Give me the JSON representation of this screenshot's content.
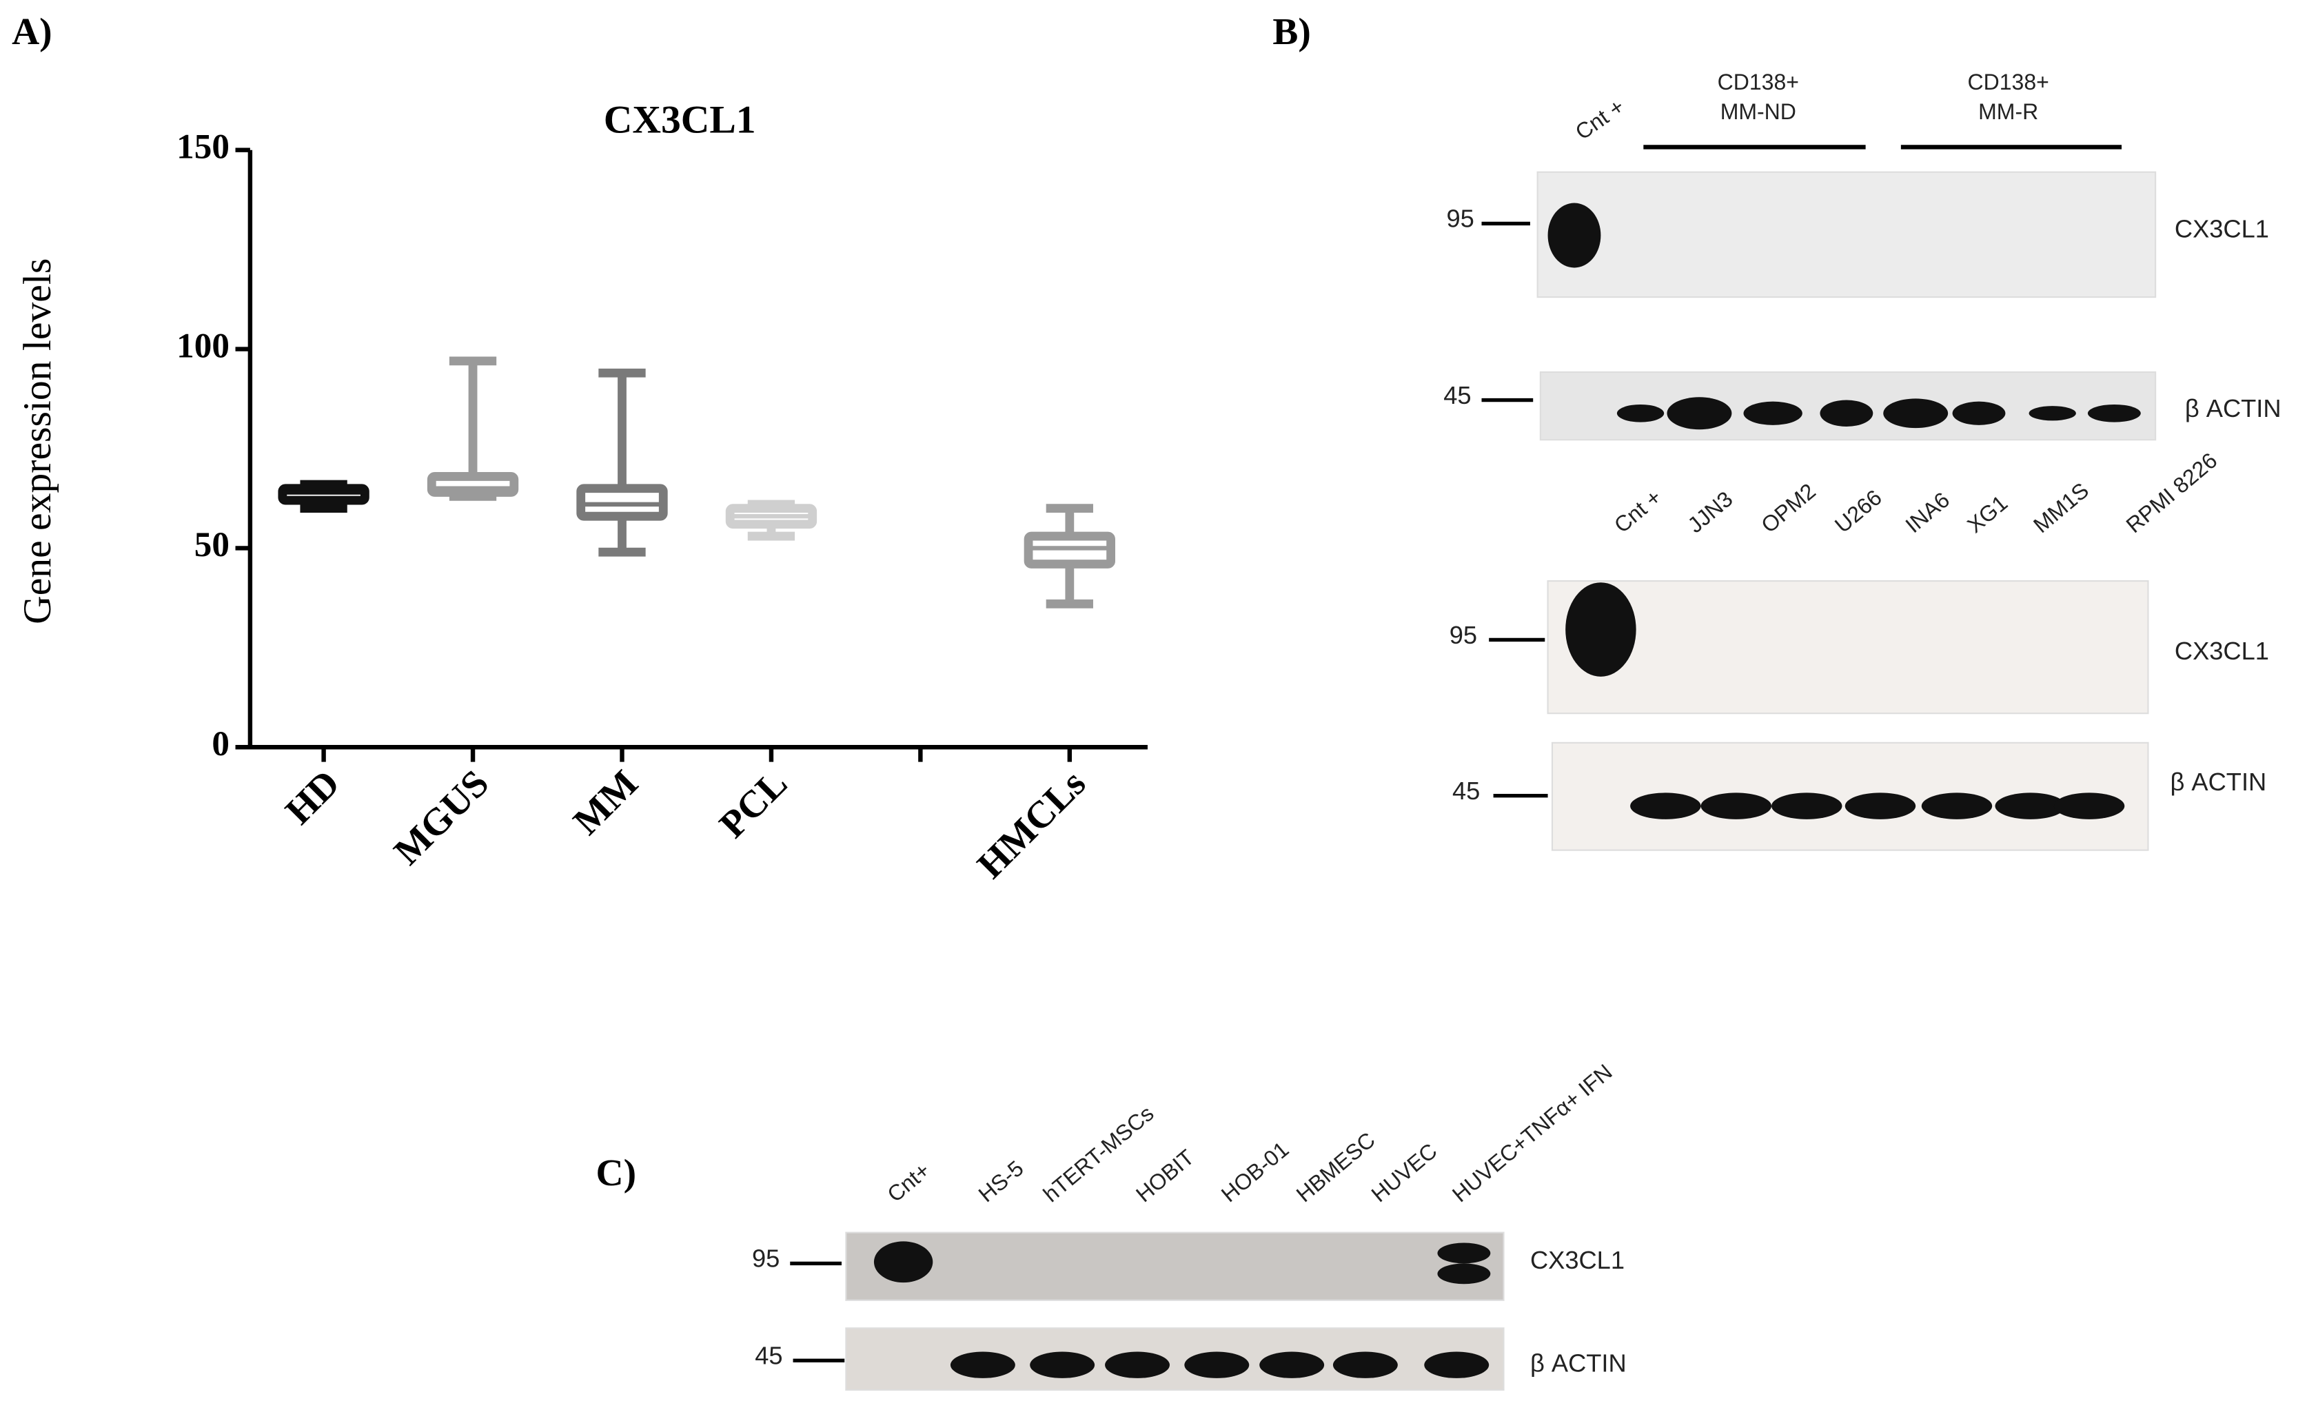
{
  "panel_labels": {
    "a": "A)",
    "b": "B)",
    "c": "C)"
  },
  "chart_data": {
    "type": "box",
    "title": "CX3CL1",
    "y_label": "Gene expression levels",
    "categories": [
      "HD",
      "MGUS",
      "MM",
      "PCL",
      null,
      "HMCLs"
    ],
    "min": [
      60,
      63,
      49,
      53,
      null,
      36
    ],
    "q1": [
      62,
      64,
      58,
      56,
      null,
      46
    ],
    "median": [
      64,
      65,
      61,
      58,
      null,
      50
    ],
    "q3": [
      65,
      68,
      65,
      60,
      null,
      53
    ],
    "max": [
      66,
      97,
      94,
      61,
      null,
      60
    ],
    "colors": [
      "#111111",
      "#9a9a9a",
      "#7a7a7a",
      "#cfcfcf",
      null,
      "#9a9a9a"
    ],
    "ylim": [
      0,
      150
    ],
    "yticks": [
      0,
      50,
      100,
      150
    ]
  },
  "blot_b1": {
    "control": "Cnt +",
    "groups": [
      {
        "line1": "CD138+",
        "line2": "MM-ND"
      },
      {
        "line1": "CD138+",
        "line2": "MM-R"
      }
    ],
    "rows": [
      {
        "marker": "95",
        "protein": "CX3CL1"
      },
      {
        "marker": "45",
        "protein": "β ACTIN"
      }
    ]
  },
  "blot_b2": {
    "lanes": [
      "Cnt +",
      "JJN3",
      "OPM2",
      "U266",
      "INA6",
      "XG1",
      "MM1S",
      "RPMI 8226"
    ],
    "rows": [
      {
        "marker": "95",
        "protein": "CX3CL1"
      },
      {
        "marker": "45",
        "protein": "β ACTIN"
      }
    ]
  },
  "blot_c": {
    "lanes": [
      "Cnt+",
      "HS-5",
      "hTERT-MSCs",
      "HOBIT",
      "HOB-01",
      "HBMESC",
      "HUVEC",
      "HUVEC+TNFα+ IFN"
    ],
    "rows": [
      {
        "marker": "95",
        "protein": "CX3CL1"
      },
      {
        "marker": "45",
        "protein": "β ACTIN"
      }
    ]
  }
}
